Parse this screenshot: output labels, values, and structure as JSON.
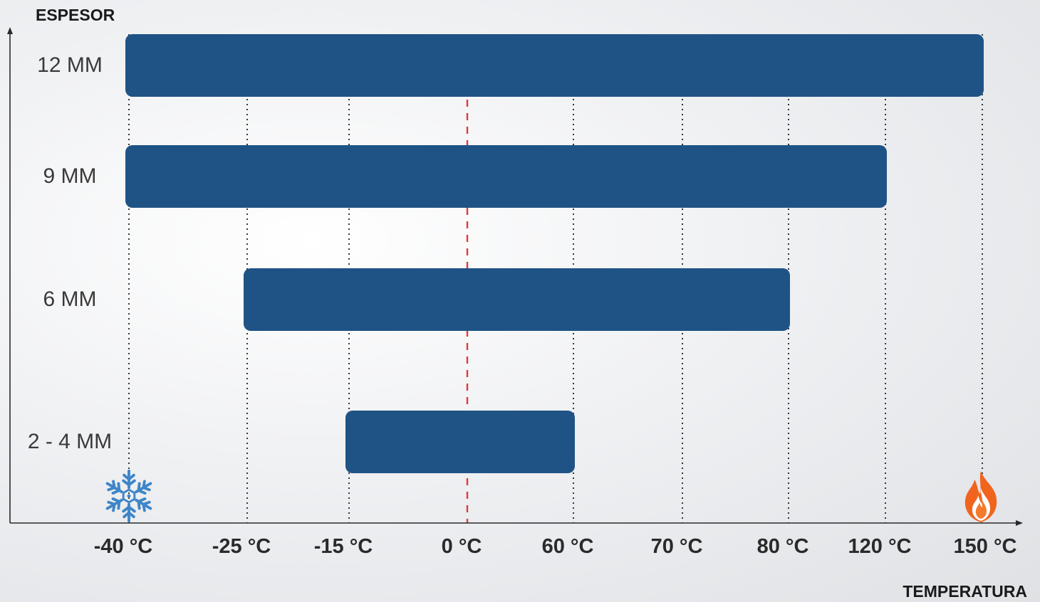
{
  "chart_data": {
    "type": "bar",
    "orientation": "horizontal-range",
    "ylabel": "ESPESOR",
    "xlabel": "TEMPERATURA",
    "x_ticks": [
      "-40 °C",
      "-25 °C",
      "-15 °C",
      "0 °C",
      "60 °C",
      "70 °C",
      "80 °C",
      "120 °C",
      "150 °C"
    ],
    "categories": [
      "12 MM",
      "9 MM",
      "6 MM",
      "2 - 4 MM"
    ],
    "ranges": [
      {
        "category": "12 MM",
        "min": "-40 °C",
        "max": "150 °C"
      },
      {
        "category": "9 MM",
        "min": "-40 °C",
        "max": "120 °C"
      },
      {
        "category": "6 MM",
        "min": "-25 °C",
        "max": "80 °C"
      },
      {
        "category": "2 - 4 MM",
        "min": "-15 °C",
        "max": "60 °C"
      }
    ],
    "reference_line": "0 °C",
    "grid": "dotted vertical lines at each tick",
    "colors": {
      "bar": "#1f5385",
      "reference_line": "#e03a3a",
      "grid": "#222222",
      "cold_icon": "#3f86c8",
      "hot_icon": "#f0641e"
    },
    "icons": {
      "cold": "snowflake-icon",
      "hot": "flame-icon"
    }
  }
}
